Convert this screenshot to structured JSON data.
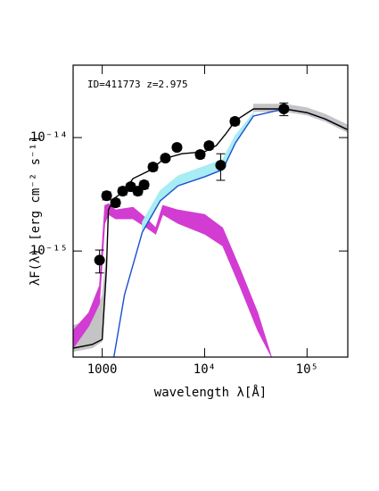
{
  "chart_data": {
    "type": "scatter",
    "annotation": "ID=411773 z=2.975",
    "x_label": "wavelength λ[Å]",
    "y_label": "λF(λ) [erg cm⁻² s⁻¹]",
    "log_x": true,
    "log_y": true,
    "xlim": [
      520,
      250000
    ],
    "ylim": [
      1.16e-16,
      4.35e-14
    ],
    "xticks": [
      1000,
      {
        "value": 10000,
        "label": "10⁴"
      },
      {
        "value": 100000,
        "label": "10⁵"
      }
    ],
    "yticks": [
      {
        "value": 1e-15,
        "label": "10⁻¹⁵"
      },
      {
        "value": 1e-14,
        "label": "10⁻¹⁴"
      }
    ],
    "series": [
      {
        "kind": "band",
        "color": "#c4c4c4",
        "x": [
          520,
          800,
          1000,
          1100
        ],
        "lower": [
          1.3e-16,
          1.4e-16,
          1.6e-16,
          6e-16
        ],
        "upper": [
          2.2e-16,
          2.5e-16,
          4e-16,
          9e-16
        ]
      },
      {
        "kind": "band",
        "color": "#c4c4c4",
        "x": [
          30000,
          60000,
          100000,
          150000,
          246000
        ],
        "lower": [
          1.7e-14,
          1.7e-14,
          1.58e-14,
          1.39e-14,
          1.12e-14
        ],
        "upper": [
          1.97e-14,
          1.97e-14,
          1.83e-14,
          1.61e-14,
          1.3e-14
        ]
      },
      {
        "kind": "band",
        "color": "#d23cd2",
        "x": [
          520,
          740,
          940,
          1060,
          1150,
          1350,
          2000,
          2720,
          3330,
          3900,
          5500,
          10000,
          15000,
          22000,
          33000,
          45000
        ],
        "lower": [
          1.39e-16,
          2.18e-16,
          3.43e-16,
          1.75e-15,
          2.1e-15,
          1.92e-15,
          1.92e-15,
          1.6e-15,
          1.41e-15,
          2.1e-15,
          1.75e-15,
          1.41e-15,
          1.11e-15,
          4.93e-16,
          1.99e-16,
          1.16e-16
        ],
        "upper": [
          1.99e-16,
          2.86e-16,
          4.93e-16,
          2.52e-15,
          2.61e-15,
          2.3e-15,
          2.43e-15,
          1.92e-15,
          1.6e-15,
          2.52e-15,
          2.3e-15,
          2.1e-15,
          1.6e-15,
          7.08e-16,
          2.86e-16,
          1.16e-16
        ]
      },
      {
        "kind": "band",
        "color": "#a8ecf4",
        "x": [
          2460,
          3680,
          5500,
          10000,
          15000,
          20000,
          30000
        ],
        "lower": [
          1.46e-15,
          2.76e-15,
          3.76e-15,
          4.51e-15,
          5.21e-15,
          8.97e-15,
          1.55e-14
        ],
        "upper": [
          1.8e-15,
          3.4e-15,
          4.6e-15,
          5.6e-15,
          6.4e-15,
          1.05e-14,
          1.65e-14
        ]
      },
      {
        "kind": "line",
        "color": "#1a4fd0",
        "x": [
          1300,
          1650,
          2460,
          3680,
          5500,
          10000,
          15000,
          20000,
          30000,
          60000,
          100000,
          150000,
          246000
        ],
        "values": [
          1.16e-16,
          4.1e-16,
          1.46e-15,
          2.76e-15,
          3.76e-15,
          4.51e-15,
          5.21e-15,
          8.97e-15,
          1.55e-14,
          1.79e-14,
          1.66e-14,
          1.46e-14,
          1.18e-14
        ]
      },
      {
        "kind": "line",
        "color": "#000000",
        "x": [
          520,
          800,
          1000,
          1100,
          1150,
          1300,
          1600,
          2000,
          3000,
          4000,
          6000,
          10000,
          13000,
          16000,
          20000,
          30000,
          60000,
          100000,
          150000,
          246000
        ],
        "values": [
          1.39e-16,
          1.5e-16,
          1.66e-16,
          7e-16,
          2.3e-15,
          2.9e-15,
          3.3e-15,
          4.35e-15,
          5.2e-15,
          6.5e-15,
          7.2e-15,
          7.5e-15,
          8.5e-15,
          1.07e-14,
          1.41e-14,
          1.79e-14,
          1.79e-14,
          1.66e-14,
          1.46e-14,
          1.18e-14
        ]
      }
    ],
    "points": {
      "color": "#000000",
      "x": [
        942,
        1105,
        1350,
        1585,
        1897,
        2228,
        2565,
        3133,
        4140,
        5370,
        9057,
        11040,
        14350,
        19770,
        59400
      ],
      "values": [
        8.3e-16,
        3.07e-15,
        2.66e-15,
        3.37e-15,
        3.69e-15,
        3.37e-15,
        3.83e-15,
        5.5e-15,
        6.59e-15,
        8.19e-15,
        7.08e-15,
        8.49e-15,
        5.7e-15,
        1.39e-14,
        1.79e-14
      ],
      "yerr": [
        1.9e-16,
        2.5e-16,
        2e-16,
        2.5e-16,
        2.5e-16,
        2.5e-16,
        3e-16,
        4e-16,
        4e-16,
        5e-16,
        5e-16,
        6e-16,
        1.5e-15,
        1e-15,
        2.3e-15
      ]
    }
  }
}
